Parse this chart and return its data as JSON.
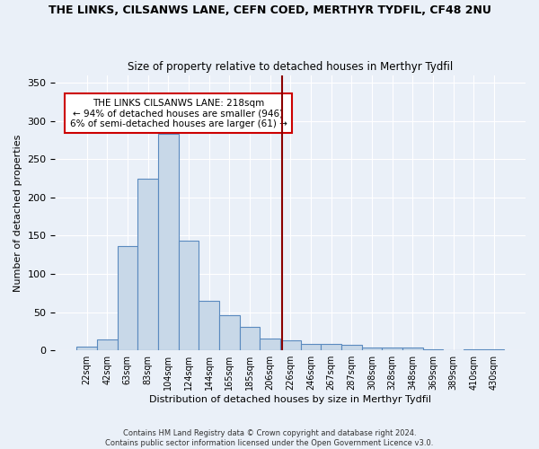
{
  "title": "THE LINKS, CILSANWS LANE, CEFN COED, MERTHYR TYDFIL, CF48 2NU",
  "subtitle": "Size of property relative to detached houses in Merthyr Tydfil",
  "xlabel": "Distribution of detached houses by size in Merthyr Tydfil",
  "ylabel": "Number of detached properties",
  "categories": [
    "22sqm",
    "42sqm",
    "63sqm",
    "83sqm",
    "104sqm",
    "124sqm",
    "144sqm",
    "165sqm",
    "185sqm",
    "206sqm",
    "226sqm",
    "246sqm",
    "267sqm",
    "287sqm",
    "308sqm",
    "328sqm",
    "348sqm",
    "369sqm",
    "389sqm",
    "410sqm",
    "430sqm"
  ],
  "values": [
    5,
    14,
    136,
    225,
    283,
    143,
    65,
    46,
    31,
    16,
    13,
    9,
    8,
    7,
    4,
    4,
    4,
    2,
    0,
    2,
    2
  ],
  "bar_color": "#c8d8e8",
  "bar_edge_color": "#5a8abf",
  "vline_color": "#8b0000",
  "annotation_text": "THE LINKS CILSANWS LANE: 218sqm\n← 94% of detached houses are smaller (946)\n6% of semi-detached houses are larger (61) →",
  "annotation_box_color": "#ffffff",
  "annotation_box_edge": "#cc0000",
  "ylim": [
    0,
    360
  ],
  "yticks": [
    0,
    50,
    100,
    150,
    200,
    250,
    300,
    350
  ],
  "background_color": "#eaf0f8",
  "grid_color": "#ffffff",
  "footer": "Contains HM Land Registry data © Crown copyright and database right 2024.\nContains public sector information licensed under the Open Government Licence v3.0."
}
